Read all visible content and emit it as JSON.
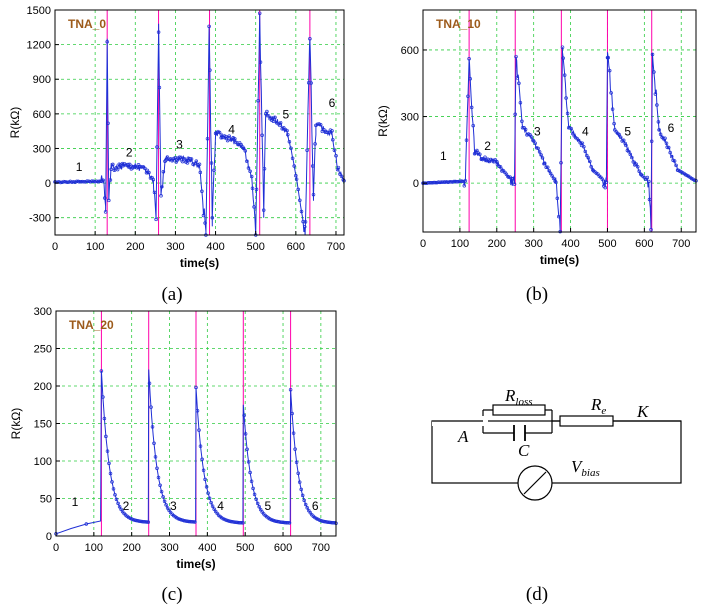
{
  "colors": {
    "trace": "#1f2fd6",
    "pulse": "#ff00aa",
    "grid": "#2ecc40",
    "title": "#9c5a1a",
    "axis": "#000000"
  },
  "axis_labels": {
    "x": "time(s)",
    "y": "R(kΩ)"
  },
  "circuit": {
    "labels": {
      "r_loss": "R",
      "r_loss_sub": "loss",
      "r_e": "R",
      "r_e_sub": "e",
      "k": "K",
      "a": "A",
      "c": "C",
      "v_bias": "V",
      "v_bias_sub": "bias"
    },
    "caption": "(d)"
  },
  "chart_data": [
    {
      "type": "line",
      "panel": "a",
      "caption": "(a)",
      "title": "TNA_0",
      "xlabel": "time(s)",
      "ylabel": "R(kΩ)",
      "xlim": [
        0,
        720
      ],
      "ylim": [
        -450,
        1500
      ],
      "xticks": [
        0,
        100,
        200,
        300,
        400,
        500,
        600,
        700
      ],
      "yticks": [
        -300,
        0,
        300,
        600,
        900,
        1200,
        1500
      ],
      "grid": true,
      "pulse_times": [
        130,
        258,
        385,
        510,
        635
      ],
      "series": [
        {
          "style": "noisy",
          "points": [
            [
              0,
              8
            ],
            [
              60,
              12
            ],
            [
              110,
              15
            ],
            [
              120,
              25
            ],
            [
              126,
              -250
            ],
            [
              130,
              1250
            ],
            [
              134,
              -150
            ],
            [
              140,
              120
            ],
            [
              170,
              150
            ],
            [
              200,
              145
            ],
            [
              230,
              110
            ],
            [
              245,
              30
            ],
            [
              252,
              -250
            ],
            [
              258,
              1380
            ],
            [
              264,
              -100
            ],
            [
              275,
              220
            ],
            [
              300,
              210
            ],
            [
              330,
              200
            ],
            [
              360,
              150
            ],
            [
              376,
              -450
            ],
            [
              384,
              1350
            ],
            [
              392,
              -300
            ],
            [
              400,
              430
            ],
            [
              440,
              380
            ],
            [
              470,
              300
            ],
            [
              490,
              60
            ],
            [
              500,
              -450
            ],
            [
              510,
              1470
            ],
            [
              520,
              -300
            ],
            [
              525,
              600
            ],
            [
              560,
              520
            ],
            [
              580,
              420
            ],
            [
              600,
              80
            ],
            [
              623,
              -450
            ],
            [
              635,
              1250
            ],
            [
              644,
              -100
            ],
            [
              650,
              500
            ],
            [
              690,
              430
            ],
            [
              705,
              120
            ],
            [
              720,
              20
            ]
          ]
        }
      ],
      "annotations": [
        {
          "text": "1",
          "x": 60,
          "y": 105
        },
        {
          "text": "2",
          "x": 185,
          "y": 230
        },
        {
          "text": "3",
          "x": 310,
          "y": 300
        },
        {
          "text": "4",
          "x": 440,
          "y": 430
        },
        {
          "text": "5",
          "x": 575,
          "y": 560
        },
        {
          "text": "6",
          "x": 690,
          "y": 660
        }
      ]
    },
    {
      "type": "line",
      "panel": "b",
      "caption": "(b)",
      "title": "TNA_10",
      "xlabel": "time(s)",
      "ylabel": "R(kΩ)",
      "xlim": [
        0,
        740
      ],
      "ylim": [
        -220,
        780
      ],
      "xticks": [
        0,
        100,
        200,
        300,
        400,
        500,
        600,
        700
      ],
      "yticks": [
        0,
        300,
        600
      ],
      "grid": true,
      "pulse_times": [
        125,
        250,
        375,
        500,
        620
      ],
      "series": [
        {
          "style": "spiky",
          "points": [
            [
              0,
              0
            ],
            [
              60,
              5
            ],
            [
              115,
              10
            ],
            [
              125,
              560
            ],
            [
              140,
              150
            ],
            [
              160,
              110
            ],
            [
              200,
              95
            ],
            [
              230,
              30
            ],
            [
              248,
              5
            ],
            [
              252,
              570
            ],
            [
              270,
              250
            ],
            [
              300,
              190
            ],
            [
              330,
              90
            ],
            [
              360,
              5
            ],
            [
              372,
              -200
            ],
            [
              378,
              590
            ],
            [
              395,
              250
            ],
            [
              430,
              180
            ],
            [
              460,
              60
            ],
            [
              497,
              5
            ],
            [
              500,
              590
            ],
            [
              520,
              240
            ],
            [
              550,
              170
            ],
            [
              590,
              40
            ],
            [
              612,
              5
            ],
            [
              618,
              -180
            ],
            [
              622,
              580
            ],
            [
              640,
              240
            ],
            [
              660,
              180
            ],
            [
              690,
              60
            ],
            [
              740,
              10
            ]
          ]
        }
      ],
      "annotations": [
        {
          "text": "1",
          "x": 55,
          "y": 105
        },
        {
          "text": "2",
          "x": 175,
          "y": 150
        },
        {
          "text": "3",
          "x": 310,
          "y": 215
        },
        {
          "text": "4",
          "x": 440,
          "y": 215
        },
        {
          "text": "5",
          "x": 555,
          "y": 215
        },
        {
          "text": "6",
          "x": 672,
          "y": 230
        }
      ]
    },
    {
      "type": "line",
      "panel": "c",
      "caption": "(c)",
      "title": "TNA_20",
      "xlabel": "time(s)",
      "ylabel": "R(kΩ)",
      "xlim": [
        0,
        740
      ],
      "ylim": [
        0,
        300
      ],
      "xticks": [
        0,
        100,
        200,
        300,
        400,
        500,
        600,
        700
      ],
      "yticks": [
        0,
        50,
        100,
        150,
        200,
        250,
        300
      ],
      "grid": true,
      "pulse_times": [
        120,
        245,
        370,
        495,
        620
      ],
      "series": [
        {
          "style": "decay",
          "start": [
            [
              0,
              3
            ],
            [
              40,
              10
            ],
            [
              80,
              16
            ],
            [
              118,
              20
            ]
          ],
          "peaks": [
            {
              "t": 120,
              "peak": 220,
              "end": 245,
              "base": 18
            },
            {
              "t": 245,
              "peak": 222,
              "end": 370,
              "base": 18
            },
            {
              "t": 370,
              "peak": 198,
              "end": 495,
              "base": 17
            },
            {
              "t": 495,
              "peak": 175,
              "end": 620,
              "base": 17
            },
            {
              "t": 620,
              "peak": 195,
              "end": 740,
              "base": 17
            }
          ]
        }
      ],
      "annotations": [
        {
          "text": "1",
          "x": 50,
          "y": 40
        },
        {
          "text": "2",
          "x": 185,
          "y": 35
        },
        {
          "text": "3",
          "x": 310,
          "y": 35
        },
        {
          "text": "4",
          "x": 435,
          "y": 35
        },
        {
          "text": "5",
          "x": 560,
          "y": 35
        },
        {
          "text": "6",
          "x": 685,
          "y": 35
        }
      ]
    }
  ]
}
